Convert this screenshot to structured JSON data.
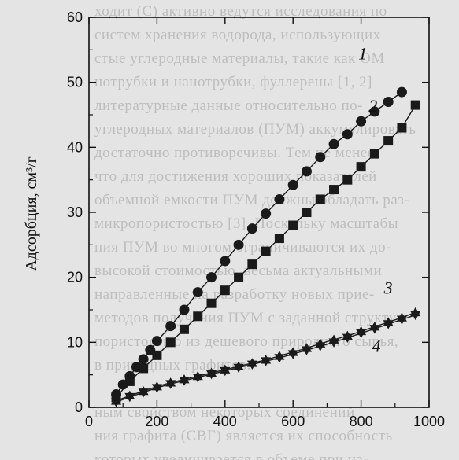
{
  "chart_data": {
    "type": "line",
    "ylabel": "Адсорбция, см³/г",
    "xlim": [
      0,
      1000
    ],
    "ylim": [
      0,
      60
    ],
    "xticks": [
      0,
      200,
      400,
      600,
      800,
      1000
    ],
    "yticks": [
      0,
      10,
      20,
      30,
      40,
      50,
      60
    ],
    "grid": false,
    "series": [
      {
        "name": "1",
        "marker": "circle",
        "x": [
          80,
          100,
          120,
          140,
          160,
          180,
          200,
          240,
          280,
          320,
          360,
          400,
          440,
          480,
          520,
          560,
          600,
          640,
          680,
          720,
          760,
          800,
          840,
          880,
          920
        ],
        "y": [
          2.0,
          3.5,
          4.8,
          6.2,
          7.4,
          8.8,
          10.2,
          12.5,
          15.0,
          17.7,
          20.0,
          22.5,
          25.0,
          27.5,
          29.8,
          32.0,
          34.2,
          36.3,
          38.5,
          40.5,
          42.0,
          44.0,
          45.5,
          47.0,
          48.5
        ]
      },
      {
        "name": "2",
        "marker": "square",
        "x": [
          80,
          120,
          160,
          200,
          240,
          280,
          320,
          360,
          400,
          440,
          480,
          520,
          560,
          600,
          640,
          680,
          720,
          760,
          800,
          840,
          880,
          920,
          960
        ],
        "y": [
          1.5,
          4.0,
          6.0,
          8.0,
          10.0,
          12.0,
          14.0,
          16.0,
          18.0,
          20.0,
          22.0,
          24.0,
          26.0,
          28.0,
          30.0,
          32.0,
          33.5,
          35.0,
          37.0,
          39.0,
          41.0,
          43.0,
          46.5
        ]
      },
      {
        "name": "3",
        "marker": "triangle-up",
        "x": [
          80,
          120,
          160,
          200,
          240,
          280,
          320,
          360,
          400,
          440,
          480,
          520,
          560,
          600,
          640,
          680,
          720,
          760,
          800,
          840,
          880,
          920,
          960
        ],
        "y": [
          1.0,
          1.8,
          2.5,
          3.2,
          3.8,
          4.3,
          4.8,
          5.3,
          5.8,
          6.3,
          6.8,
          7.3,
          7.9,
          8.5,
          9.1,
          9.8,
          10.4,
          11.0,
          11.7,
          12.4,
          13.1,
          13.8,
          14.6
        ]
      },
      {
        "name": "4",
        "marker": "triangle-down",
        "x": [
          80,
          120,
          160,
          200,
          240,
          280,
          320,
          360,
          400,
          440,
          480,
          520,
          560,
          600,
          640,
          680,
          720,
          760,
          800,
          840,
          880,
          920,
          960
        ],
        "y": [
          0.8,
          1.6,
          2.3,
          3.0,
          3.6,
          4.1,
          4.6,
          5.1,
          5.6,
          6.1,
          6.6,
          7.1,
          7.6,
          8.2,
          8.8,
          9.4,
          10.0,
          10.7,
          11.4,
          12.1,
          12.8,
          13.5,
          14.2
        ]
      }
    ],
    "series_labels": [
      {
        "name": "1",
        "x": 805,
        "y": 53.5
      },
      {
        "name": "2",
        "x": 835,
        "y": 45.5
      },
      {
        "name": "3",
        "x": 880,
        "y": 17.5
      },
      {
        "name": "4",
        "x": 845,
        "y": 8.5
      }
    ]
  },
  "background_text": [
    "ходит (С) активно ведутся исследования по",
    "систем хранения водорода, использующих",
    "стые углеродные материалы, такие как ОМ",
    "нотрубки и нанотрубки, фуллерены [1, 2]",
    "литературные данные относительно по-",
    "углеродных материалов (ПУМ) аккумулировать",
    "достаточно противоречивы. Тем не менее",
    "что для достижения хороших показателей",
    "объемной емкости ПУМ должны обладать раз-",
    "микропористостью [3]. Поскольку масштабы",
    "ния ПУМ во многом ограничиваются их до-",
    "высокой стоимостью, весьма актуальными",
    "направленные на разработку новых прие-",
    "методов получения ПУМ с заданной структу-",
    "пористостью из дешевого природного сырья,",
    "в природных графитов.",
    "",
    "ным свойством некоторых соединений",
    "ния графита (СВГ) является их способность",
    "которых увеличивается в объеме при на-"
  ]
}
